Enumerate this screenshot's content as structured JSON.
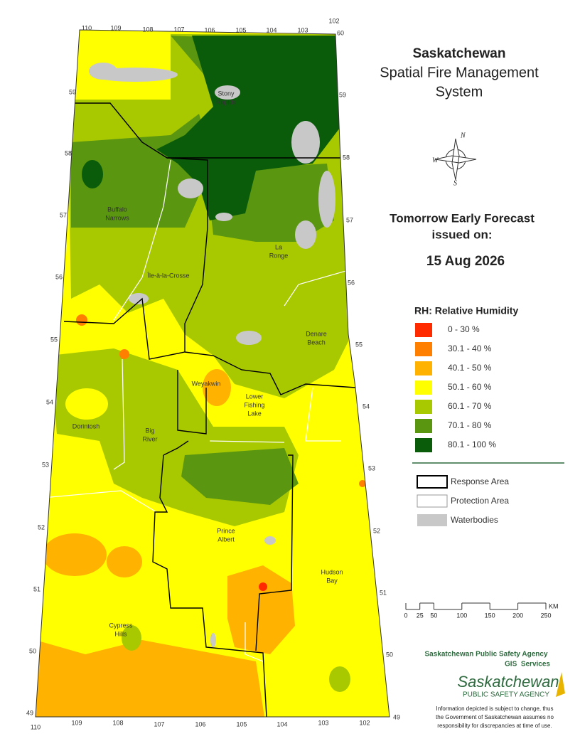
{
  "title": {
    "line1": "Saskatchewan",
    "line2": "Spatial Fire Management",
    "line3": "System"
  },
  "forecast": {
    "line1": "Tomorrow Early Forecast",
    "line2": "issued on:",
    "date": "15 Aug 2026"
  },
  "compass": {
    "north": "N",
    "west": "W",
    "south": "S"
  },
  "legend": {
    "title": "RH: Relative Humidity",
    "classes": [
      {
        "label": "0 - 30 %",
        "color": "#ff2a00"
      },
      {
        "label": "30.1 - 40 %",
        "color": "#ff7f00"
      },
      {
        "label": "40.1 - 50 %",
        "color": "#ffb300"
      },
      {
        "label": "50.1 - 60 %",
        "color": "#ffff00"
      },
      {
        "label": "60.1 - 70 %",
        "color": "#a8c800"
      },
      {
        "label": "70.1 - 80 %",
        "color": "#5a960f"
      },
      {
        "label": "80.1 - 100 %",
        "color": "#0a5c0a"
      }
    ]
  },
  "boundaries": [
    "Response Area",
    "Protection Area",
    "Waterbodies"
  ],
  "places": [
    [
      "Stony",
      "Rapids"
    ],
    [
      "Buffalo",
      "Narrows"
    ],
    [
      "La",
      "Ronge"
    ],
    [
      "Île-à-la-Crosse"
    ],
    [
      "Denare",
      "Beach"
    ],
    [
      "Weyakwin"
    ],
    [
      "Lower",
      "Fishing",
      "Lake"
    ],
    [
      "Dorintosh"
    ],
    [
      "Big",
      "River"
    ],
    [
      "Prince",
      "Albert"
    ],
    [
      "Hudson",
      "Bay"
    ],
    [
      "Cypress",
      "Hills"
    ]
  ],
  "longitudes_top": [
    110,
    109,
    108,
    107,
    106,
    105,
    104,
    103,
    102
  ],
  "corner_top": 60,
  "latitudes_left": [
    59,
    58,
    57,
    56,
    55,
    54,
    53,
    52,
    51,
    50,
    49
  ],
  "latitudes_right": [
    59,
    58,
    57,
    56,
    55,
    54,
    53,
    52,
    51,
    50,
    49
  ],
  "longitudes_bottom": [
    110,
    109,
    108,
    107,
    106,
    105,
    104,
    103,
    102
  ],
  "scale": {
    "ticks": [
      0,
      25,
      50,
      100,
      150,
      200,
      250
    ],
    "unit": "KM"
  },
  "credits": {
    "agency": "Saskatchewan Public Safety Agency",
    "unit": "GIS  Services",
    "logo_main": "Saskatchewan",
    "logo_sub": "PUBLIC SAFETY AGENCY",
    "disclaimer": [
      "Information depicted is subject to change, thus",
      "the Government of Saskatchewan assumes no",
      "responsibility for discrepancies at time of use."
    ]
  }
}
